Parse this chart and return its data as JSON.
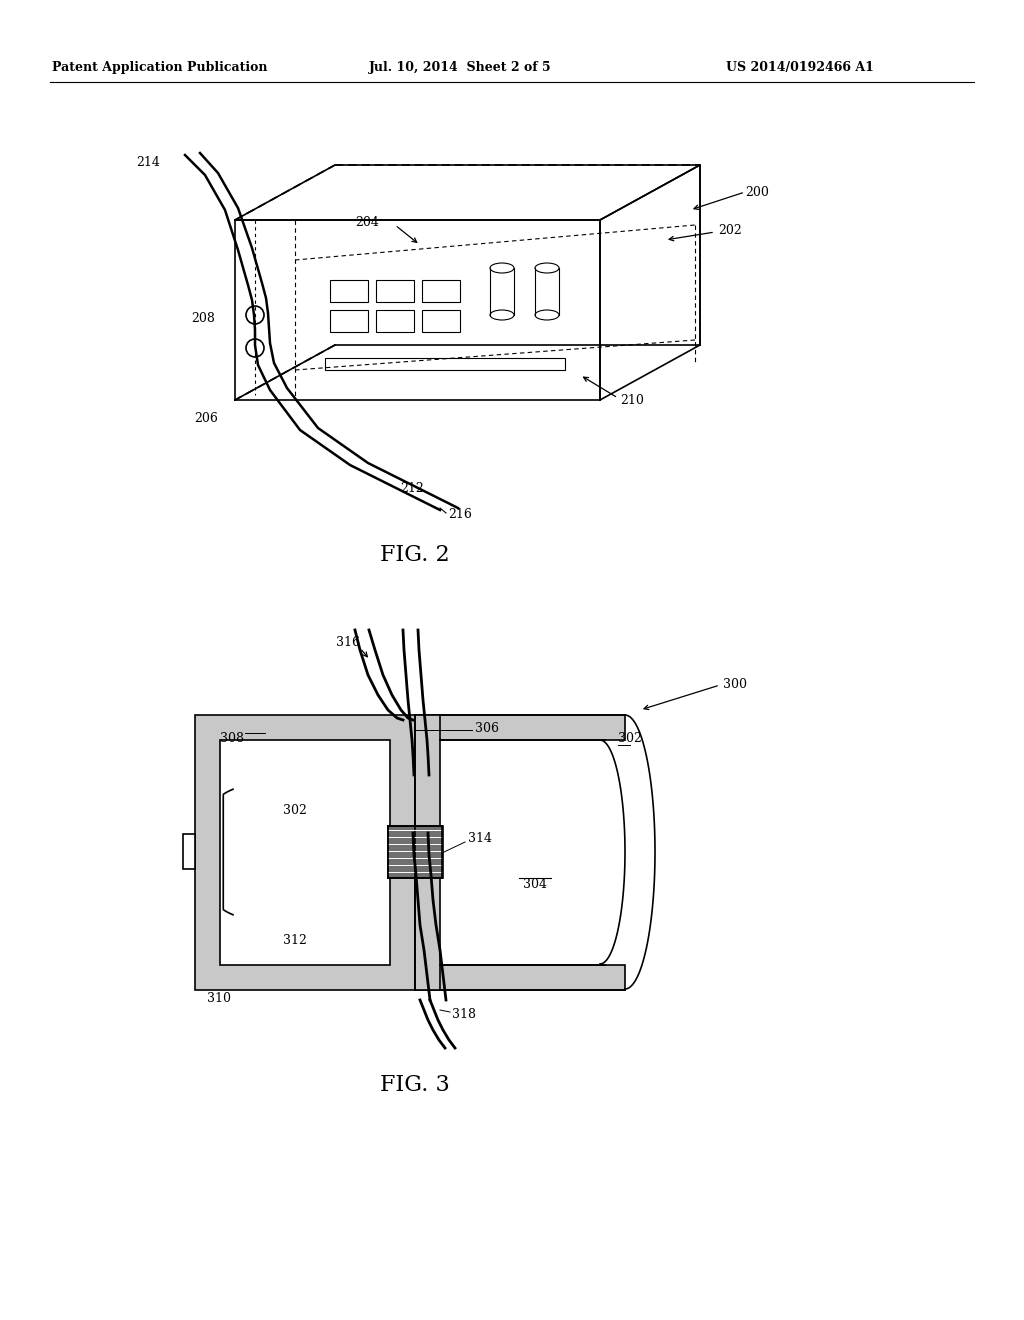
{
  "header_left": "Patent Application Publication",
  "header_center": "Jul. 10, 2014  Sheet 2 of 5",
  "header_right": "US 2014/0192466 A1",
  "fig2_label": "FIG. 2",
  "fig3_label": "FIG. 3",
  "bg_color": "#ffffff",
  "line_color": "#000000"
}
